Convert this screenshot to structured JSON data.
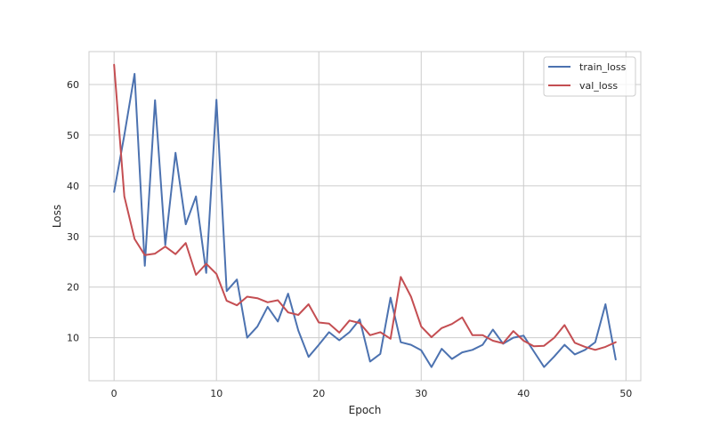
{
  "chart_data": {
    "type": "line",
    "title": "",
    "xlabel": "Epoch",
    "ylabel": "Loss",
    "xlim": [
      -2.45,
      51.45
    ],
    "ylim": [
      1.5,
      66.5
    ],
    "xticks": [
      0,
      10,
      20,
      30,
      40,
      50
    ],
    "yticks": [
      10,
      20,
      30,
      40,
      50,
      60
    ],
    "grid": true,
    "legend_position": "top-right",
    "x": [
      0,
      1,
      2,
      3,
      4,
      5,
      6,
      7,
      8,
      9,
      10,
      11,
      12,
      13,
      14,
      15,
      16,
      17,
      18,
      19,
      20,
      21,
      22,
      23,
      24,
      25,
      26,
      27,
      28,
      29,
      30,
      31,
      32,
      33,
      34,
      35,
      36,
      37,
      38,
      39,
      40,
      41,
      42,
      43,
      44,
      45,
      46,
      47,
      48,
      49
    ],
    "series": [
      {
        "name": "train_loss",
        "color": "#4c72b0",
        "values": [
          38.8,
          50.0,
          62.1,
          24.2,
          56.9,
          28.3,
          46.5,
          32.4,
          37.9,
          22.8,
          57.0,
          19.2,
          21.5,
          10.0,
          12.2,
          16.1,
          13.2,
          18.7,
          11.4,
          6.2,
          8.6,
          11.1,
          9.5,
          11.1,
          13.6,
          5.3,
          6.8,
          17.9,
          9.1,
          8.6,
          7.5,
          4.2,
          7.8,
          5.8,
          7.1,
          7.6,
          8.6,
          11.6,
          8.8,
          10.0,
          10.4,
          7.3,
          4.2,
          6.3,
          8.6,
          6.7,
          7.6,
          9.1,
          16.6,
          5.7
        ]
      },
      {
        "name": "val_loss",
        "color": "#c44e52",
        "values": [
          63.9,
          37.9,
          29.5,
          26.3,
          26.6,
          28.0,
          26.5,
          28.7,
          22.4,
          24.6,
          22.6,
          17.3,
          16.4,
          18.1,
          17.8,
          17.0,
          17.4,
          15.0,
          14.5,
          16.6,
          13.0,
          12.8,
          11.0,
          13.4,
          12.9,
          10.5,
          11.1,
          9.8,
          22.0,
          18.1,
          12.2,
          10.1,
          11.9,
          12.7,
          14.0,
          10.5,
          10.5,
          9.4,
          8.9,
          11.3,
          9.4,
          8.3,
          8.4,
          10.0,
          12.5,
          9.0,
          8.2,
          7.6,
          8.2,
          9.1
        ]
      }
    ]
  }
}
